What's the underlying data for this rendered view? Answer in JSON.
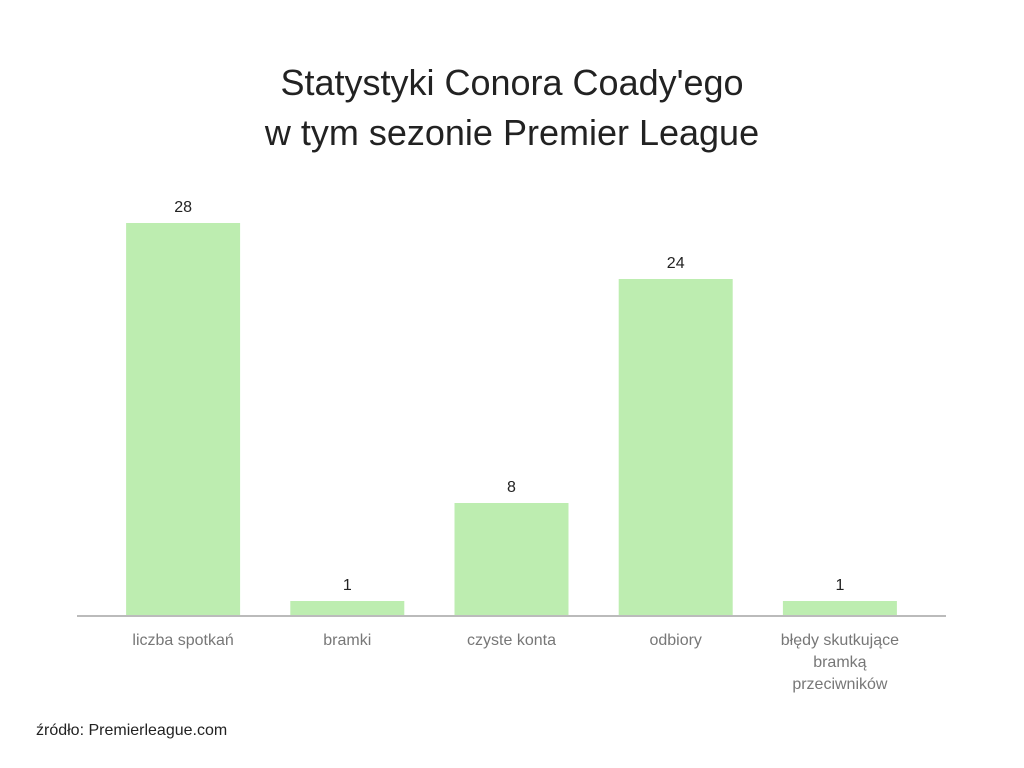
{
  "chart_data": {
    "type": "bar",
    "title": "Statystyki Conora Coady'ego\nw tym sezonie Premier League",
    "categories": [
      "liczba spotkań",
      "bramki",
      "czyste konta",
      "odbiory",
      "błędy skutkujące bramką przeciwników"
    ],
    "values": [
      28,
      1,
      8,
      24,
      1
    ],
    "color": "#bdedb0",
    "source": "źródło: Premierleague.com"
  }
}
